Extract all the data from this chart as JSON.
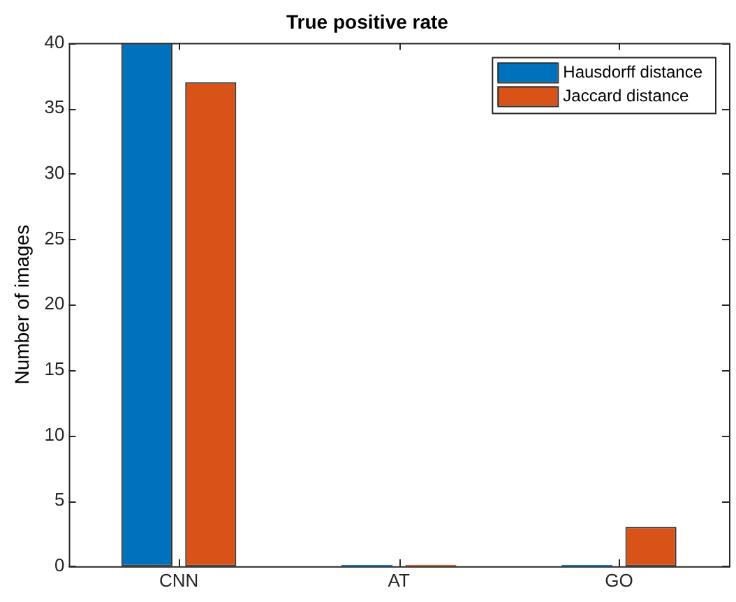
{
  "chart_data": {
    "type": "bar",
    "title": "True positive rate",
    "ylabel": "Number of images",
    "categories": [
      "CNN",
      "AT",
      "GO"
    ],
    "series": [
      {
        "name": "Hausdorff distance",
        "color": "#0072bd",
        "values": [
          40,
          0,
          0
        ]
      },
      {
        "name": "Jaccard distance",
        "color": "#d95319",
        "values": [
          37,
          0,
          3
        ]
      }
    ],
    "ylim": [
      0,
      40
    ],
    "yticks": [
      0,
      5,
      10,
      15,
      20,
      25,
      30,
      35,
      40
    ],
    "grid": false,
    "legend": "top right"
  }
}
